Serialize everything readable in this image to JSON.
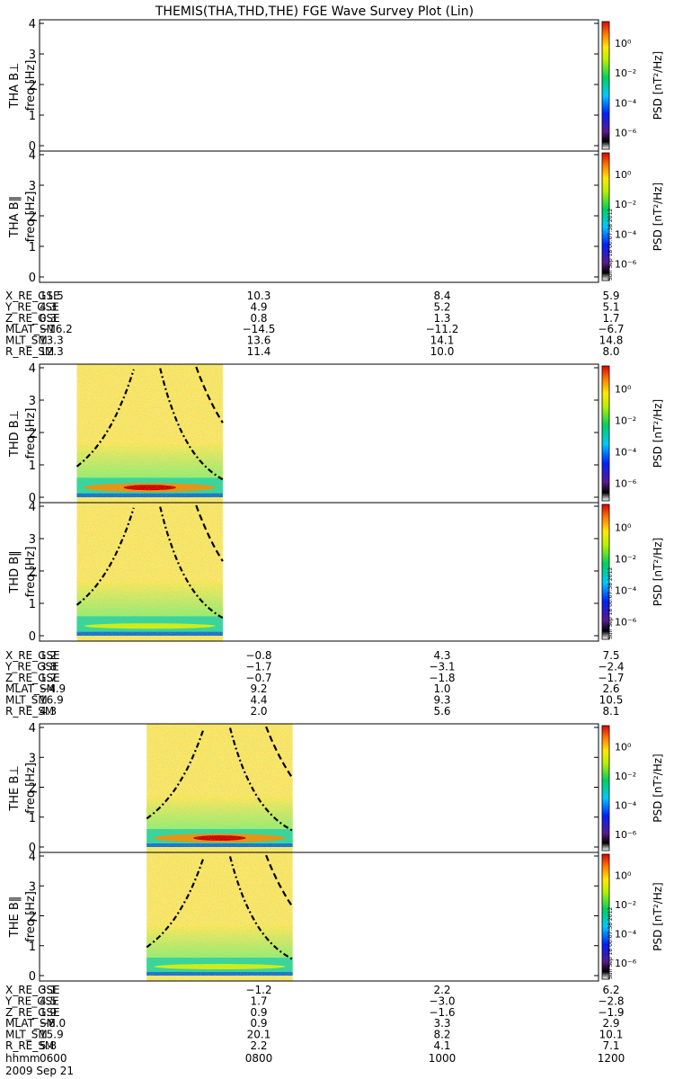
{
  "title": "THEMIS(THA,THD,THE) FGE Wave Survey Plot (Lin)",
  "stamp": "Sun Sep 18 00:07:38 2012",
  "colorbar": {
    "label": "PSD [nT²/Hz]",
    "ticks": [
      "10⁰",
      "10⁻²",
      "10⁻⁴",
      "10⁻⁶"
    ]
  },
  "freq_ticks": [
    "0",
    "1",
    "2",
    "3",
    "4"
  ],
  "freq_axis_label": "freq [Hz]",
  "panels": [
    {
      "probe": "THA B⊥",
      "data_from": null,
      "data_to": null,
      "cyclotron": false
    },
    {
      "probe": "THA B‖",
      "data_from": null,
      "data_to": null,
      "cyclotron": false
    },
    {
      "probe": "THD B⊥",
      "data_from": "06:24",
      "data_to": "07:58",
      "cyclotron": true,
      "band_intensity": "strong"
    },
    {
      "probe": "THD B‖",
      "data_from": "06:24",
      "data_to": "07:58",
      "cyclotron": true,
      "band_intensity": "weak"
    },
    {
      "probe": "THE B⊥",
      "data_from": "07:09",
      "data_to": "08:43",
      "cyclotron": true,
      "band_intensity": "strong"
    },
    {
      "probe": "THE B‖",
      "data_from": "07:09",
      "data_to": "08:43",
      "cyclotron": true,
      "band_intensity": "weak"
    }
  ],
  "ephem_labels": [
    "X_RE_GSE",
    "Y_RE_GSE",
    "Z_RE_GSE",
    "MLAT_SM",
    "MLT_SM",
    "R_RE_SM"
  ],
  "ephemeris": [
    {
      "rows": [
        [
          "11.5",
          "10.3",
          "8.4",
          "5.9"
        ],
        [
          "4.3",
          "4.9",
          "5.2",
          "5.1"
        ],
        [
          "0.3",
          "0.8",
          "1.3",
          "1.7"
        ],
        [
          "−16.2",
          "−14.5",
          "−11.2",
          "−6.7"
        ],
        [
          "13.3",
          "13.6",
          "14.1",
          "14.8"
        ],
        [
          "12.3",
          "11.4",
          "10.0",
          "8.0"
        ]
      ]
    },
    {
      "rows": [
        [
          "1.2",
          "−0.8",
          "4.3",
          "7.5"
        ],
        [
          "3.8",
          "−1.7",
          "−3.1",
          "−2.4"
        ],
        [
          "1.7",
          "−0.7",
          "−1.8",
          "−1.7"
        ],
        [
          "−4.9",
          "9.2",
          "1.0",
          "2.6"
        ],
        [
          "16.9",
          "4.4",
          "9.3",
          "10.5"
        ],
        [
          "4.3",
          "2.0",
          "5.6",
          "8.1"
        ]
      ]
    },
    {
      "rows": [
        [
          "3.1",
          "−1.2",
          "2.2",
          "6.2"
        ],
        [
          "4.5",
          "1.7",
          "−3.0",
          "−2.8"
        ],
        [
          "1.9",
          "0.9",
          "−1.6",
          "−1.9"
        ],
        [
          "−8.0",
          "0.9",
          "3.3",
          "2.9"
        ],
        [
          "15.9",
          "20.1",
          "8.2",
          "10.1"
        ],
        [
          "5.8",
          "2.2",
          "4.1",
          "7.1"
        ]
      ]
    }
  ],
  "time_axis": {
    "label": "hhmm",
    "ticks": [
      "0600",
      "0800",
      "1000",
      "1200"
    ],
    "date": "2009 Sep 21"
  },
  "chart_data": {
    "type": "heatmap",
    "title": "THEMIS(THA,THD,THE) FGE Wave Survey Plot (Lin)",
    "x": [
      "0600",
      "0800",
      "1000",
      "1200"
    ],
    "xlabel": "hhmm",
    "ylabel": "freq [Hz]",
    "ylim": [
      0,
      4
    ],
    "colorbar_label": "PSD [nT²/Hz]",
    "colorbar_range": [
      "10⁻⁶",
      "10⁰"
    ]
  }
}
